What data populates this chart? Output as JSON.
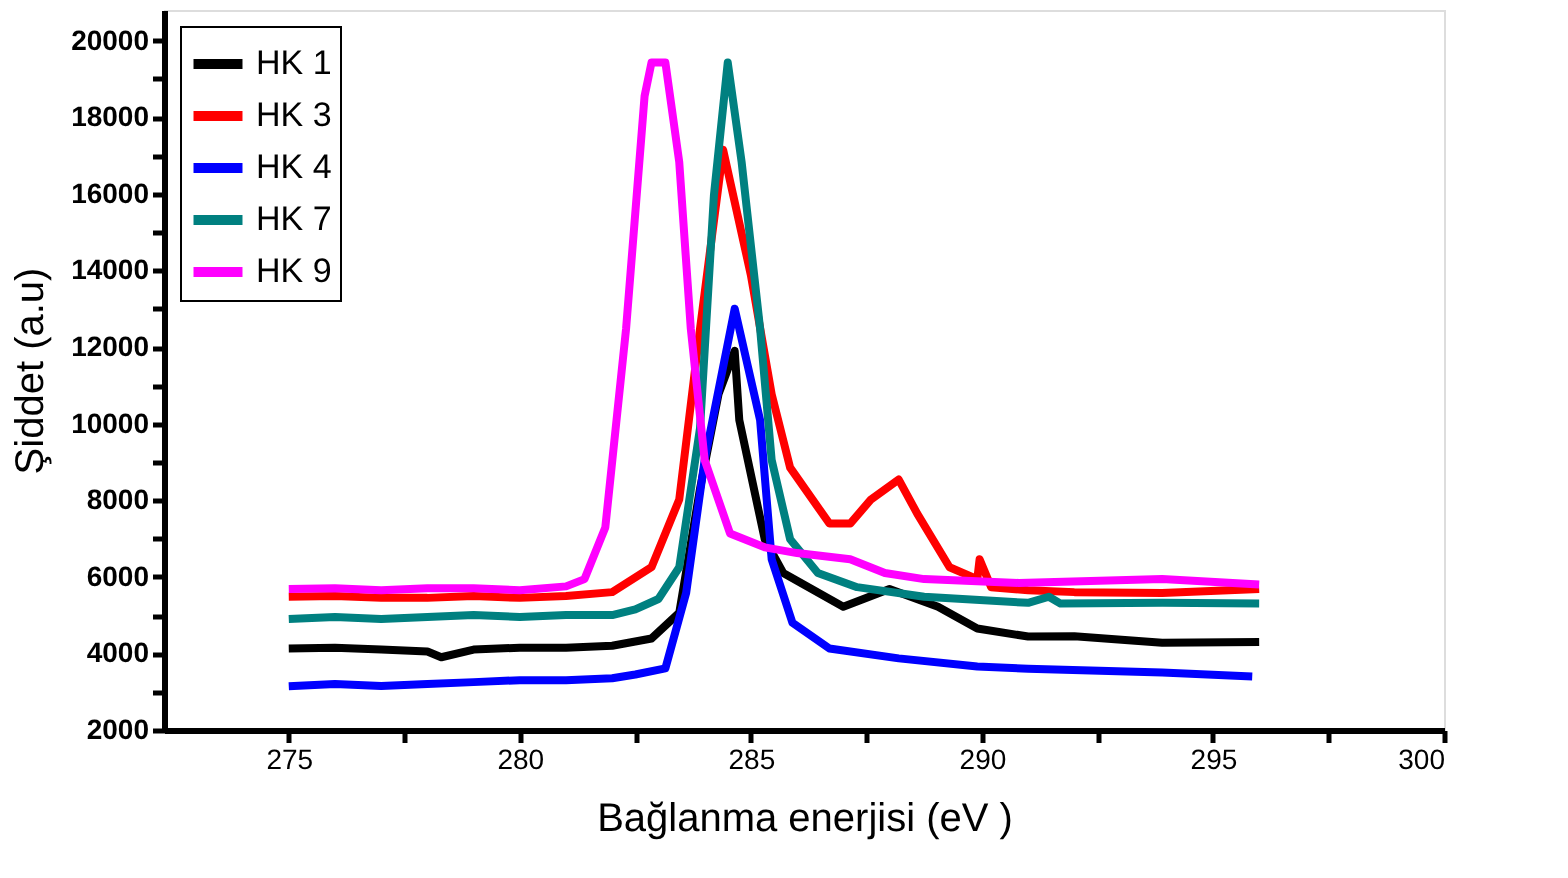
{
  "chart_data": {
    "type": "line",
    "xlabel": "Bağlanma enerjisi (eV )",
    "ylabel": "Şiddet (a.u)",
    "xlim": [
      272.3,
      300
    ],
    "ylim": [
      2000,
      20800
    ],
    "xticks": [
      275,
      {
        "value": 277.5,
        "label": null
      },
      280,
      {
        "value": 282.5,
        "label": null
      },
      285,
      {
        "value": 287.5,
        "label": null
      },
      290,
      {
        "value": 292.5,
        "label": null
      },
      295,
      {
        "value": 297.5,
        "label": null
      },
      300
    ],
    "yticks": [
      2000,
      {
        "value": 3000,
        "label": null
      },
      4000,
      {
        "value": 5000,
        "label": null
      },
      6000,
      {
        "value": 7000,
        "label": null
      },
      8000,
      {
        "value": 9000,
        "label": null
      },
      10000,
      {
        "value": 11000,
        "label": null
      },
      12000,
      {
        "value": 13000,
        "label": null
      },
      14000,
      {
        "value": 15000,
        "label": null
      },
      16000,
      {
        "value": 17000,
        "label": null
      },
      18000,
      {
        "value": 19000,
        "label": null
      },
      20000
    ],
    "grid": false,
    "legend": "top left",
    "marker": "none",
    "line_style": "solid",
    "series": [
      {
        "name": "HK 1",
        "color": "#000000",
        "x": [
          275,
          276,
          277,
          278,
          278.3,
          279,
          280,
          281,
          282,
          282.85,
          283.45,
          283.9,
          284.3,
          284.65,
          284.75,
          285.3,
          285.7,
          287.0,
          288.0,
          289.05,
          289.9,
          291.0,
          292.0,
          293.9,
          296
        ],
        "values": [
          4130,
          4150,
          4100,
          4050,
          3900,
          4100,
          4150,
          4150,
          4200,
          4390,
          5060,
          8300,
          10770,
          11900,
          10090,
          6980,
          6100,
          5220,
          5680,
          5220,
          4650,
          4440,
          4450,
          4280,
          4300
        ]
      },
      {
        "name": "HK 3",
        "color": "#ff0000",
        "x": [
          275,
          276,
          277,
          278,
          279,
          280,
          281,
          282,
          282.85,
          283.45,
          283.9,
          284.4,
          285.0,
          285.45,
          285.85,
          286.7,
          287.15,
          287.6,
          288.2,
          288.6,
          289.3,
          289.9,
          289.95,
          290.2,
          291,
          292,
          293.9,
          296
        ],
        "values": [
          5480,
          5500,
          5450,
          5450,
          5500,
          5450,
          5500,
          5600,
          6250,
          8020,
          12480,
          17150,
          13880,
          10770,
          8850,
          7390,
          7390,
          8020,
          8540,
          7650,
          6250,
          5940,
          6460,
          5730,
          5650,
          5600,
          5580,
          5680
        ]
      },
      {
        "name": "HK 4",
        "color": "#0000ff",
        "x": [
          275,
          276,
          277,
          278,
          279,
          280,
          281,
          282,
          282.5,
          283.15,
          283.6,
          284.0,
          284.65,
          285.2,
          285.45,
          285.9,
          286.7,
          288.2,
          289.9,
          291,
          293.9,
          295.85
        ],
        "values": [
          3140,
          3200,
          3150,
          3200,
          3250,
          3300,
          3300,
          3350,
          3450,
          3610,
          5580,
          9050,
          13000,
          10090,
          6460,
          4800,
          4130,
          3870,
          3660,
          3600,
          3500,
          3400
        ]
      },
      {
        "name": "HK 7",
        "color": "#008080",
        "x": [
          275,
          276,
          277,
          278,
          279,
          280,
          281,
          282,
          282.5,
          283.0,
          283.45,
          283.9,
          284.2,
          284.5,
          284.8,
          285.2,
          285.45,
          285.85,
          286.45,
          287.3,
          288.75,
          291.0,
          291.45,
          291.7,
          293.9,
          296
        ],
        "values": [
          4900,
          4950,
          4900,
          4950,
          5000,
          4950,
          5000,
          5000,
          5150,
          5420,
          6250,
          9880,
          15950,
          19430,
          16830,
          12480,
          9050,
          6980,
          6100,
          5730,
          5480,
          5320,
          5480,
          5300,
          5320,
          5300
        ]
      },
      {
        "name": "HK 9",
        "color": "#ff00ff",
        "x": [
          275,
          276,
          277,
          278,
          279,
          280,
          281,
          281.4,
          281.85,
          282.3,
          282.7,
          282.85,
          283.15,
          283.45,
          283.7,
          284.0,
          284.55,
          285.3,
          286.0,
          287.15,
          287.9,
          288.75,
          290.8,
          293.9,
          296
        ],
        "values": [
          5680,
          5700,
          5650,
          5700,
          5700,
          5650,
          5750,
          5940,
          7290,
          12480,
          18550,
          19430,
          19430,
          16830,
          12480,
          9050,
          7130,
          6770,
          6620,
          6460,
          6100,
          5940,
          5840,
          5940,
          5800
        ]
      }
    ]
  }
}
